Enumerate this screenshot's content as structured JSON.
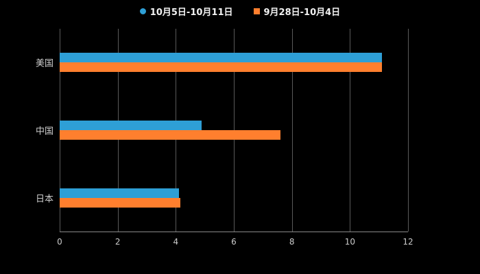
{
  "chart_data": {
    "type": "bar",
    "orientation": "horizontal",
    "title": "",
    "categories": [
      "美国",
      "中国",
      "日本"
    ],
    "series": [
      {
        "name": "10月5日-10月11日",
        "color": "#2E9FD6",
        "marker": "circle",
        "values": [
          11.1,
          4.9,
          4.1
        ]
      },
      {
        "name": "9月28日-10月4日",
        "color": "#FF7F2E",
        "marker": "square",
        "values": [
          11.1,
          7.6,
          4.15
        ]
      }
    ],
    "xlim": [
      0,
      12
    ],
    "x_ticks": [
      0,
      2,
      4,
      6,
      8,
      10,
      12
    ],
    "grid": true,
    "legend_position": "top"
  },
  "colors": {
    "background": "#000000",
    "text": "#cccccc",
    "legend_text": "#f2f2f2",
    "gridline": "#5a5a5a",
    "axis_line": "#8a8a8a"
  }
}
